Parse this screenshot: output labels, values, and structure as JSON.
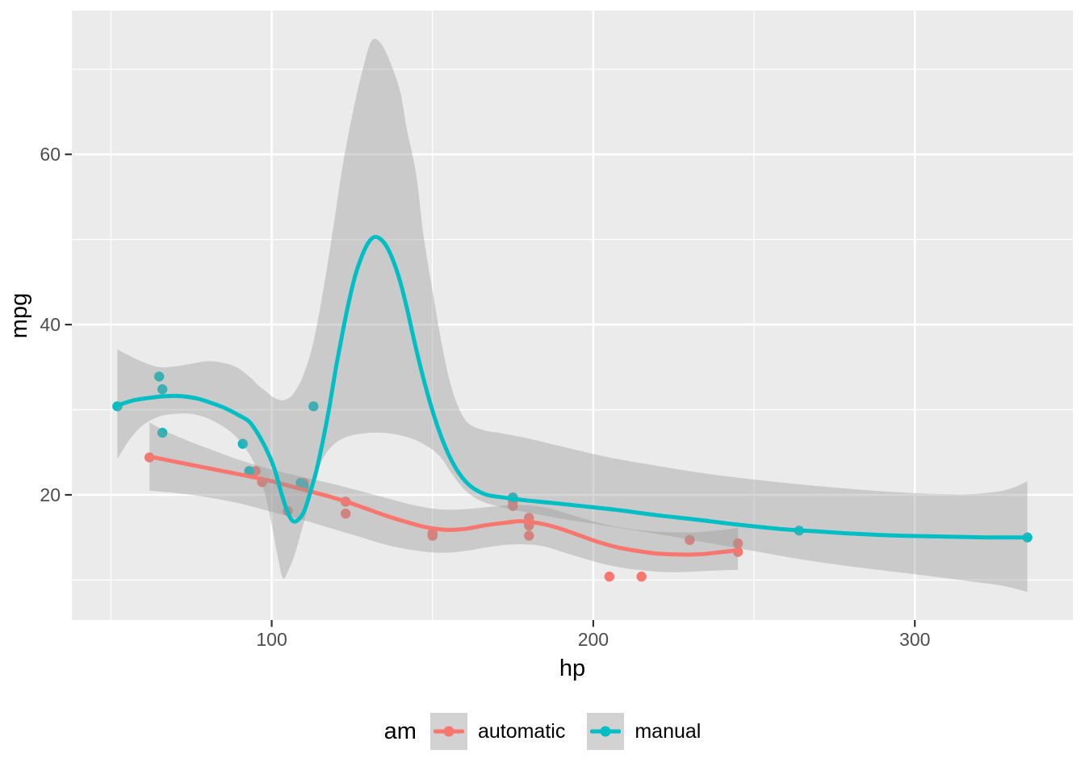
{
  "figure": {
    "background": "#FFFFFF",
    "panel_background": "#EBEBEB",
    "grid_color": "#FFFFFF",
    "tick_mark_color": "#333333",
    "axis_text_color": "#4D4D4D",
    "axis_title_color": "#000000",
    "ribbon_color": "rgba(153,153,153,0.4)"
  },
  "chart_data": {
    "type": "scatter",
    "title": "",
    "xlabel": "hp",
    "ylabel": "mpg",
    "xlim": [
      37.85,
      349.15
    ],
    "ylim": [
      5.3,
      76.9
    ],
    "grid": true,
    "x_axis": {
      "major": [
        100,
        200,
        300
      ],
      "minor": [
        50,
        150,
        250
      ],
      "labels": [
        "100",
        "200",
        "300"
      ]
    },
    "y_axis": {
      "major": [
        20,
        40,
        60
      ],
      "minor": [
        10,
        30,
        50,
        70
      ],
      "labels": [
        "20",
        "40",
        "60"
      ]
    },
    "legend": {
      "title": "am",
      "position": "bottom",
      "entries": [
        {
          "label": "automatic",
          "color": "#F8766D"
        },
        {
          "label": "manual",
          "color": "#00BFC4"
        }
      ]
    },
    "groups": [
      {
        "name": "automatic",
        "color": "#F8766D",
        "points": [
          [
            110,
            21.4
          ],
          [
            175,
            18.7
          ],
          [
            105,
            18.1
          ],
          [
            245,
            14.3
          ],
          [
            62,
            24.4
          ],
          [
            95,
            22.8
          ],
          [
            123,
            19.2
          ],
          [
            123,
            17.8
          ],
          [
            180,
            16.4
          ],
          [
            180,
            17.3
          ],
          [
            180,
            15.2
          ],
          [
            205,
            10.4
          ],
          [
            215,
            10.4
          ],
          [
            230,
            14.7
          ],
          [
            97,
            21.5
          ],
          [
            150,
            15.5
          ],
          [
            150,
            15.2
          ],
          [
            245,
            13.3
          ],
          [
            175,
            19.2
          ]
        ],
        "smooth": [
          [
            62,
            24.5
          ],
          [
            70,
            23.9
          ],
          [
            78,
            23.3
          ],
          [
            86,
            22.7
          ],
          [
            94,
            22.1
          ],
          [
            100,
            21.6
          ],
          [
            106,
            21.0
          ],
          [
            112,
            20.4
          ],
          [
            118,
            19.8
          ],
          [
            124,
            19.1
          ],
          [
            130,
            18.3
          ],
          [
            136,
            17.5
          ],
          [
            142,
            16.8
          ],
          [
            148,
            16.2
          ],
          [
            154,
            15.9
          ],
          [
            160,
            16.0
          ],
          [
            166,
            16.4
          ],
          [
            172,
            16.7
          ],
          [
            178,
            16.9
          ],
          [
            184,
            16.6
          ],
          [
            190,
            16.0
          ],
          [
            196,
            15.2
          ],
          [
            202,
            14.4
          ],
          [
            208,
            13.8
          ],
          [
            214,
            13.4
          ],
          [
            220,
            13.1
          ],
          [
            226,
            13.0
          ],
          [
            232,
            13.0
          ],
          [
            238,
            13.2
          ],
          [
            245,
            13.5
          ]
        ],
        "ribbon": [
          [
            62,
            28.5,
            20.5
          ],
          [
            68,
            27.3,
            20.3
          ],
          [
            75,
            26.2,
            20.0
          ],
          [
            82,
            25.2,
            19.6
          ],
          [
            90,
            24.1,
            19.0
          ],
          [
            97,
            23.3,
            18.3
          ],
          [
            104,
            22.6,
            17.6
          ],
          [
            112,
            21.9,
            16.8
          ],
          [
            120,
            21.2,
            15.9
          ],
          [
            128,
            20.4,
            15.0
          ],
          [
            136,
            19.6,
            14.1
          ],
          [
            144,
            18.8,
            13.5
          ],
          [
            152,
            18.3,
            13.2
          ],
          [
            160,
            18.3,
            13.4
          ],
          [
            168,
            18.6,
            13.9
          ],
          [
            176,
            18.8,
            14.2
          ],
          [
            184,
            18.6,
            14.0
          ],
          [
            192,
            17.8,
            13.1
          ],
          [
            200,
            16.9,
            12.2
          ],
          [
            208,
            16.2,
            11.5
          ],
          [
            216,
            15.8,
            11.1
          ],
          [
            224,
            15.6,
            10.9
          ],
          [
            232,
            15.6,
            11.0
          ],
          [
            238,
            15.8,
            11.1
          ],
          [
            245,
            16.1,
            11.2
          ]
        ]
      },
      {
        "name": "manual",
        "color": "#00BFC4",
        "points": [
          [
            110,
            21.0
          ],
          [
            110,
            21.0
          ],
          [
            93,
            22.8
          ],
          [
            66,
            32.4
          ],
          [
            52,
            30.4
          ],
          [
            65,
            33.9
          ],
          [
            66,
            27.3
          ],
          [
            91,
            26.0
          ],
          [
            113,
            30.4
          ],
          [
            264,
            15.8
          ],
          [
            175,
            19.7
          ],
          [
            335,
            15.0
          ],
          [
            109,
            21.4
          ]
        ],
        "smooth": [
          [
            52,
            30.5
          ],
          [
            57,
            31.1
          ],
          [
            62,
            31.4
          ],
          [
            67,
            31.6
          ],
          [
            72,
            31.6
          ],
          [
            77,
            31.3
          ],
          [
            82,
            30.7
          ],
          [
            86,
            30.1
          ],
          [
            90,
            29.3
          ],
          [
            93,
            28.6
          ],
          [
            96,
            27.0
          ],
          [
            99,
            24.8
          ],
          [
            101,
            22.9
          ],
          [
            103,
            20.2
          ],
          [
            105,
            17.9
          ],
          [
            106.5,
            16.95
          ],
          [
            108,
            17.0
          ],
          [
            110,
            18.0
          ],
          [
            112,
            20.3
          ],
          [
            114,
            23.0
          ],
          [
            116,
            26.5
          ],
          [
            118,
            30.5
          ],
          [
            120,
            35.0
          ],
          [
            122,
            39.0
          ],
          [
            124,
            42.7
          ],
          [
            126,
            45.8
          ],
          [
            128,
            48.0
          ],
          [
            130,
            49.6
          ],
          [
            132,
            50.3
          ],
          [
            134,
            50.0
          ],
          [
            136,
            49.0
          ],
          [
            138,
            47.3
          ],
          [
            140,
            45.0
          ],
          [
            142,
            42.0
          ],
          [
            145,
            37.0
          ],
          [
            148,
            32.5
          ],
          [
            151,
            28.7
          ],
          [
            154,
            25.6
          ],
          [
            157,
            23.3
          ],
          [
            160,
            21.7
          ],
          [
            163,
            20.7
          ],
          [
            167,
            20.0
          ],
          [
            172,
            19.7
          ],
          [
            178,
            19.4
          ],
          [
            186,
            19.1
          ],
          [
            196,
            18.7
          ],
          [
            208,
            18.2
          ],
          [
            220,
            17.6
          ],
          [
            232,
            17.1
          ],
          [
            245,
            16.5
          ],
          [
            258,
            16.0
          ],
          [
            270,
            15.7
          ],
          [
            283,
            15.4
          ],
          [
            296,
            15.2
          ],
          [
            310,
            15.1
          ],
          [
            322,
            15.0
          ],
          [
            335,
            15.0
          ]
        ],
        "ribbon": [
          [
            52,
            37.1,
            24.2
          ],
          [
            56,
            36.3,
            26.6
          ],
          [
            60,
            35.6,
            28.2
          ],
          [
            65,
            35.0,
            29.2
          ],
          [
            70,
            35.1,
            29.5
          ],
          [
            75,
            35.4,
            29.5
          ],
          [
            80,
            35.7,
            29.0
          ],
          [
            85,
            35.5,
            28.0
          ],
          [
            89,
            35.0,
            26.8
          ],
          [
            93,
            33.9,
            24.8
          ],
          [
            96,
            32.8,
            22.5
          ],
          [
            98,
            32.2,
            20.0
          ],
          [
            100,
            31.6,
            16.5
          ],
          [
            102,
            31.2,
            12.5
          ],
          [
            103.5,
            31.1,
            10.2
          ],
          [
            105,
            31.3,
            11.0
          ],
          [
            107,
            32.0,
            12.8
          ],
          [
            110,
            34.2,
            16.8
          ],
          [
            113,
            38.0,
            21.3
          ],
          [
            116,
            44.0,
            24.3
          ],
          [
            119,
            51.0,
            25.8
          ],
          [
            122,
            58.5,
            26.6
          ],
          [
            125,
            64.5,
            27.0
          ],
          [
            128,
            69.5,
            27.2
          ],
          [
            131,
            73.3,
            27.3
          ],
          [
            134,
            73.0,
            27.3
          ],
          [
            137,
            70.7,
            27.2
          ],
          [
            140,
            67.3,
            27.0
          ],
          [
            142,
            63.0,
            26.8
          ],
          [
            145,
            57.5,
            26.4
          ],
          [
            147,
            51.0,
            26.0
          ],
          [
            150,
            44.0,
            25.3
          ],
          [
            153,
            37.5,
            24.2
          ],
          [
            156,
            32.5,
            22.5
          ],
          [
            160,
            28.9,
            20.6
          ],
          [
            165,
            27.7,
            19.3
          ],
          [
            172,
            27.2,
            18.5
          ],
          [
            180,
            26.6,
            17.9
          ],
          [
            190,
            25.7,
            17.2
          ],
          [
            205,
            24.4,
            16.3
          ],
          [
            220,
            23.4,
            15.4
          ],
          [
            235,
            22.5,
            14.4
          ],
          [
            250,
            21.8,
            13.4
          ],
          [
            265,
            21.2,
            12.4
          ],
          [
            280,
            20.7,
            11.6
          ],
          [
            295,
            20.3,
            10.9
          ],
          [
            308,
            20.1,
            10.3
          ],
          [
            318,
            20.1,
            9.8
          ],
          [
            326,
            20.4,
            9.4
          ],
          [
            331,
            20.9,
            9.0
          ],
          [
            335,
            21.6,
            8.6
          ]
        ]
      }
    ]
  }
}
